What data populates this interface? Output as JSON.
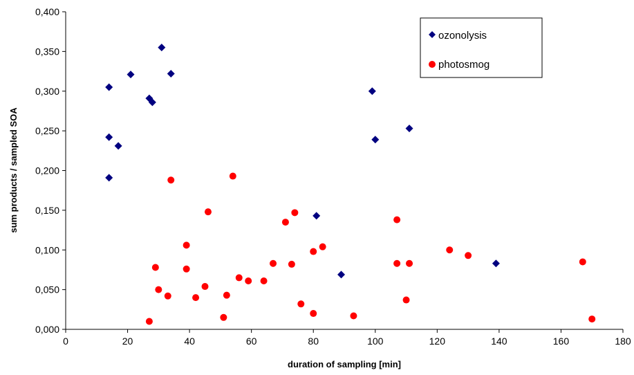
{
  "chart_data": {
    "type": "scatter",
    "xlabel": "duration of sampling [min]",
    "ylabel": "sum products / sampled SOA",
    "xlim": [
      0,
      180
    ],
    "ylim": [
      0,
      0.4
    ],
    "x_ticks": [
      "0",
      "20",
      "40",
      "60",
      "80",
      "100",
      "120",
      "140",
      "160",
      "180"
    ],
    "y_ticks": [
      "0,000",
      "0,050",
      "0,100",
      "0,150",
      "0,200",
      "0,250",
      "0,300",
      "0,350",
      "0,400"
    ],
    "grid": false,
    "legend_position": "top-right",
    "series": [
      {
        "name": "ozonolysis",
        "marker": "diamond",
        "color": "#000080",
        "points": [
          [
            14,
            0.305
          ],
          [
            14,
            0.242
          ],
          [
            14,
            0.191
          ],
          [
            17,
            0.231
          ],
          [
            21,
            0.321
          ],
          [
            27,
            0.291
          ],
          [
            28,
            0.286
          ],
          [
            31,
            0.355
          ],
          [
            34,
            0.322
          ],
          [
            81,
            0.143
          ],
          [
            89,
            0.069
          ],
          [
            99,
            0.3
          ],
          [
            100,
            0.239
          ],
          [
            111,
            0.253
          ],
          [
            139,
            0.083
          ]
        ]
      },
      {
        "name": "photosmog",
        "marker": "circle",
        "color": "#ff0000",
        "points": [
          [
            27,
            0.01
          ],
          [
            29,
            0.078
          ],
          [
            30,
            0.05
          ],
          [
            33,
            0.042
          ],
          [
            34,
            0.188
          ],
          [
            39,
            0.106
          ],
          [
            39,
            0.076
          ],
          [
            42,
            0.04
          ],
          [
            45,
            0.054
          ],
          [
            46,
            0.148
          ],
          [
            51,
            0.015
          ],
          [
            52,
            0.043
          ],
          [
            54,
            0.193
          ],
          [
            56,
            0.065
          ],
          [
            59,
            0.061
          ],
          [
            64,
            0.061
          ],
          [
            67,
            0.083
          ],
          [
            71,
            0.135
          ],
          [
            73,
            0.082
          ],
          [
            74,
            0.147
          ],
          [
            76,
            0.032
          ],
          [
            80,
            0.098
          ],
          [
            80,
            0.02
          ],
          [
            83,
            0.104
          ],
          [
            93,
            0.017
          ],
          [
            107,
            0.138
          ],
          [
            107,
            0.083
          ],
          [
            110,
            0.037
          ],
          [
            111,
            0.083
          ],
          [
            124,
            0.1
          ],
          [
            130,
            0.093
          ],
          [
            167,
            0.085
          ],
          [
            170,
            0.013
          ]
        ]
      }
    ]
  }
}
